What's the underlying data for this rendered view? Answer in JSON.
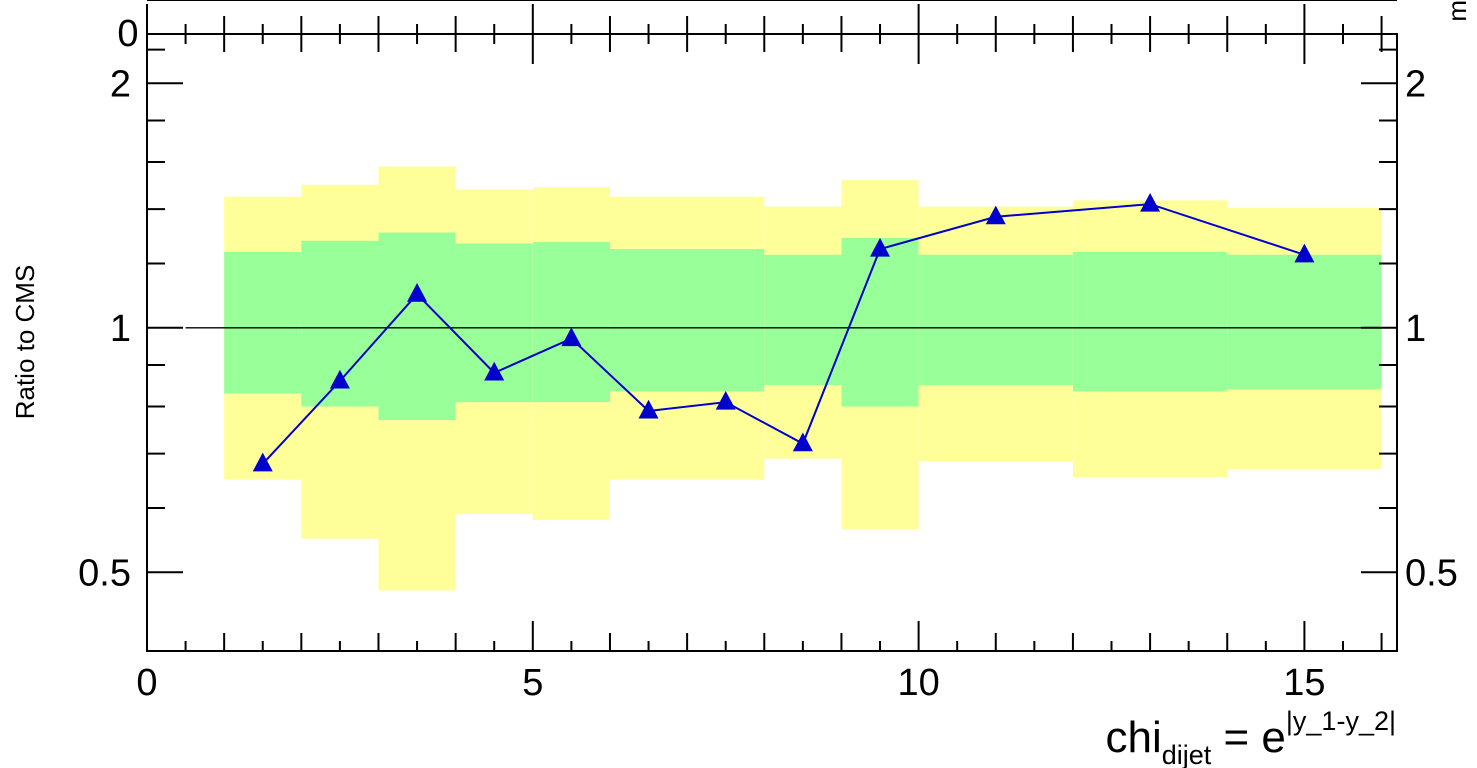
{
  "chart_data": {
    "type": "line",
    "title": "",
    "ylabel": "Ratio to CMS",
    "xlabel": {
      "base": "chi",
      "sub": "dijet",
      "eq": " = e",
      "sup": "|y_1-y_2|"
    },
    "x_range": [
      0,
      16.2
    ],
    "y_range": [
      0.4,
      2.3
    ],
    "y_scale": "log",
    "x_ticks": [
      0,
      5,
      10,
      15
    ],
    "y_ticks": [
      0.5,
      1,
      2
    ],
    "reference_line": 1,
    "top_panel_cut_label": "0",
    "right_edge_cut_label": "m",
    "bins": [
      {
        "x_lo": 1,
        "x_hi": 2,
        "band_68": [
          0.83,
          1.24
        ],
        "band_95": [
          0.65,
          1.45
        ]
      },
      {
        "x_lo": 2,
        "x_hi": 3,
        "band_68": [
          0.8,
          1.28
        ],
        "band_95": [
          0.55,
          1.5
        ]
      },
      {
        "x_lo": 3,
        "x_hi": 4,
        "band_68": [
          0.77,
          1.31
        ],
        "band_95": [
          0.475,
          1.58
        ]
      },
      {
        "x_lo": 4,
        "x_hi": 5,
        "band_68": [
          0.81,
          1.27
        ],
        "band_95": [
          0.59,
          1.48
        ]
      },
      {
        "x_lo": 5,
        "x_hi": 6,
        "band_68": [
          0.81,
          1.275
        ],
        "band_95": [
          0.58,
          1.49
        ]
      },
      {
        "x_lo": 6,
        "x_hi": 8,
        "band_68": [
          0.835,
          1.25
        ],
        "band_95": [
          0.65,
          1.45
        ]
      },
      {
        "x_lo": 8,
        "x_hi": 9,
        "band_68": [
          0.85,
          1.23
        ],
        "band_95": [
          0.69,
          1.41
        ]
      },
      {
        "x_lo": 9,
        "x_hi": 10,
        "band_68": [
          0.8,
          1.29
        ],
        "band_95": [
          0.565,
          1.52
        ]
      },
      {
        "x_lo": 10,
        "x_hi": 12,
        "band_68": [
          0.85,
          1.23
        ],
        "band_95": [
          0.685,
          1.41
        ]
      },
      {
        "x_lo": 12,
        "x_hi": 14,
        "band_68": [
          0.835,
          1.24
        ],
        "band_95": [
          0.655,
          1.435
        ]
      },
      {
        "x_lo": 14,
        "x_hi": 16,
        "band_68": [
          0.84,
          1.23
        ],
        "band_95": [
          0.67,
          1.405
        ]
      }
    ],
    "series": [
      {
        "x": [
          1.5,
          2.5,
          3.5,
          4.5,
          5.5,
          6.5,
          7.5,
          8.5,
          9.5,
          11,
          13,
          15
        ],
        "values": [
          0.68,
          0.86,
          1.1,
          0.88,
          0.97,
          0.79,
          0.81,
          0.72,
          1.25,
          1.37,
          1.42,
          1.23
        ],
        "color": "#0000cc",
        "marker": "triangle"
      }
    ],
    "colors": {
      "band_68": "#99ff99",
      "band_95": "#ffff99",
      "series": "#0000cc",
      "axes": "#000000"
    },
    "grid": false,
    "legend": "none"
  }
}
